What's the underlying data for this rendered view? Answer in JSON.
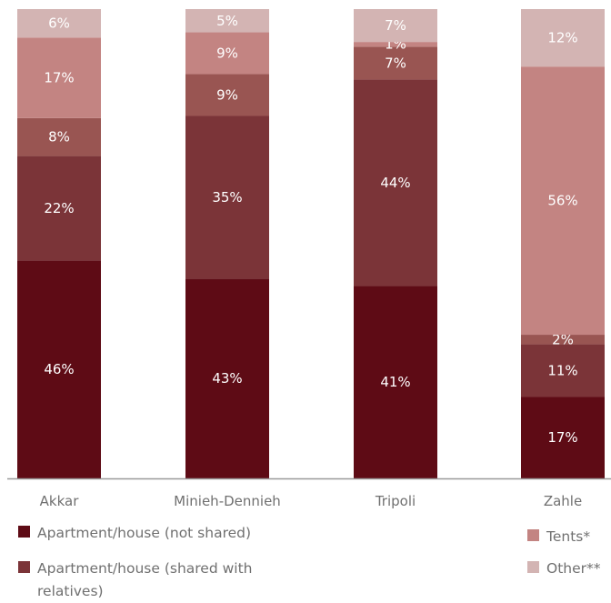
{
  "chart_data": {
    "type": "bar",
    "stacked": true,
    "categories": [
      "Akkar",
      "Minieh-Dennieh",
      "Tripoli",
      "Zahle"
    ],
    "series": [
      {
        "name": "Apartment/house (not shared)",
        "color": "#5e0b15",
        "values": [
          46,
          43,
          41,
          17
        ],
        "labels": [
          "46%",
          "43%",
          "41%",
          "17%"
        ]
      },
      {
        "name": "Apartment/house (shared with relatives)",
        "color": "#7b3438",
        "values": [
          22,
          35,
          44,
          11
        ],
        "labels": [
          "22%",
          "35%",
          "44%",
          "11%"
        ]
      },
      {
        "name": "",
        "color": "#995552",
        "values": [
          8,
          9,
          7,
          2
        ],
        "labels": [
          "8%",
          "9%",
          "7%",
          "2%"
        ]
      },
      {
        "name": "Tents*",
        "color": "#c38482",
        "values": [
          17,
          9,
          1,
          56
        ],
        "labels": [
          "17%",
          "9%",
          "1%",
          "56%"
        ]
      },
      {
        "name": "Other**",
        "color": "#d3b4b3",
        "values": [
          6,
          5,
          7,
          12
        ],
        "labels": [
          "6%",
          "5%",
          "7%",
          "12%"
        ]
      }
    ],
    "ylim": [
      0,
      100
    ],
    "legend_position": "bottom",
    "grid": false
  }
}
